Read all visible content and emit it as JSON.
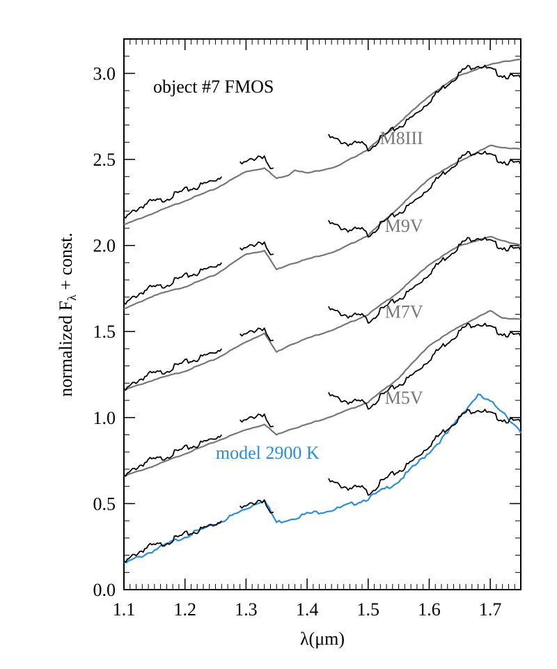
{
  "chart_data": {
    "type": "line",
    "title": "object #7 FMOS",
    "xlabel": "λ(μm)",
    "ylabel": "normalized Fλ + const.",
    "ylabel_parts": {
      "main": "normalized F",
      "sub": "λ",
      "tail": " + const."
    },
    "xlim": [
      1.1,
      1.75
    ],
    "ylim": [
      0.0,
      3.2
    ],
    "xticks": [
      1.1,
      1.2,
      1.3,
      1.4,
      1.5,
      1.6,
      1.7
    ],
    "xtick_labels": [
      "1.1",
      "1.2",
      "1.3",
      "1.4",
      "1.5",
      "1.6",
      "1.7"
    ],
    "yticks": [
      0.0,
      0.5,
      1.0,
      1.5,
      2.0,
      2.5,
      3.0
    ],
    "ytick_labels": [
      "0.0",
      "0.5",
      "1.0",
      "1.5",
      "2.0",
      "2.5",
      "3.0"
    ],
    "colors": {
      "observed": "#000000",
      "template": "#777777",
      "model": "#2a8de0"
    },
    "offsets": [
      0.0,
      0.5,
      1.0,
      1.5,
      2.0
    ],
    "segments": [
      {
        "x": [
          1.1,
          1.12,
          1.14,
          1.16,
          1.18,
          1.2,
          1.22,
          1.24,
          1.26
        ],
        "y": [
          0.15,
          0.21,
          0.25,
          0.26,
          0.29,
          0.32,
          0.34,
          0.37,
          0.4
        ]
      },
      {
        "x": [
          1.29,
          1.3,
          1.31,
          1.32,
          1.33,
          1.34,
          1.345
        ],
        "y": [
          0.47,
          0.48,
          0.5,
          0.52,
          0.52,
          0.43,
          0.45
        ]
      },
      {
        "x": [
          1.435,
          1.45,
          1.47,
          1.49,
          1.5,
          1.52,
          1.54,
          1.56,
          1.58,
          1.6,
          1.62,
          1.64,
          1.66,
          1.68,
          1.7,
          1.72,
          1.75
        ],
        "y": [
          0.63,
          0.61,
          0.59,
          0.59,
          0.56,
          0.62,
          0.67,
          0.71,
          0.77,
          0.84,
          0.91,
          0.97,
          1.03,
          1.05,
          1.02,
          0.99,
          0.97
        ]
      }
    ],
    "series": [
      {
        "name": "model 2900 K",
        "label": "model 2900 K",
        "offset": 0.0,
        "color": "#2a8de0",
        "x": [
          1.1,
          1.15,
          1.2,
          1.25,
          1.3,
          1.32,
          1.33,
          1.35,
          1.37,
          1.4,
          1.45,
          1.5,
          1.55,
          1.6,
          1.63,
          1.66,
          1.68,
          1.7,
          1.72,
          1.75
        ],
        "y": [
          0.15,
          0.23,
          0.31,
          0.38,
          0.47,
          0.51,
          0.52,
          0.39,
          0.41,
          0.44,
          0.47,
          0.53,
          0.63,
          0.8,
          0.91,
          1.05,
          1.13,
          1.09,
          1.04,
          0.91
        ]
      },
      {
        "name": "M5V",
        "label": "M5V",
        "offset": 0.5,
        "color": "#777777",
        "x": [
          1.1,
          1.15,
          1.2,
          1.25,
          1.3,
          1.33,
          1.35,
          1.37,
          1.4,
          1.45,
          1.5,
          1.55,
          1.6,
          1.65,
          1.7,
          1.72,
          1.75
        ],
        "y": [
          0.16,
          0.22,
          0.29,
          0.36,
          0.43,
          0.46,
          0.4,
          0.43,
          0.46,
          0.52,
          0.59,
          0.73,
          0.92,
          1.03,
          1.12,
          1.08,
          1.07
        ]
      },
      {
        "name": "M7V",
        "label": "M7V",
        "offset": 1.0,
        "color": "#777777",
        "x": [
          1.1,
          1.15,
          1.2,
          1.25,
          1.3,
          1.33,
          1.35,
          1.37,
          1.4,
          1.45,
          1.5,
          1.55,
          1.6,
          1.65,
          1.7,
          1.72,
          1.75
        ],
        "y": [
          0.16,
          0.22,
          0.27,
          0.34,
          0.44,
          0.49,
          0.38,
          0.42,
          0.46,
          0.52,
          0.6,
          0.73,
          0.89,
          1.0,
          1.05,
          1.03,
          1.0
        ]
      },
      {
        "name": "M9V",
        "label": "M9V",
        "offset": 1.5,
        "color": "#777777",
        "x": [
          1.1,
          1.15,
          1.2,
          1.25,
          1.3,
          1.33,
          1.35,
          1.37,
          1.4,
          1.45,
          1.5,
          1.55,
          1.6,
          1.65,
          1.7,
          1.72,
          1.75
        ],
        "y": [
          0.13,
          0.21,
          0.26,
          0.33,
          0.45,
          0.47,
          0.36,
          0.39,
          0.42,
          0.47,
          0.56,
          0.72,
          0.89,
          0.99,
          1.08,
          1.07,
          1.06
        ]
      },
      {
        "name": "M8III",
        "label": "M8III",
        "offset": 2.0,
        "color": "#777777",
        "x": [
          1.1,
          1.15,
          1.2,
          1.25,
          1.3,
          1.33,
          1.35,
          1.37,
          1.38,
          1.4,
          1.45,
          1.5,
          1.55,
          1.6,
          1.65,
          1.7,
          1.72,
          1.75
        ],
        "y": [
          0.12,
          0.19,
          0.26,
          0.33,
          0.43,
          0.45,
          0.39,
          0.41,
          0.44,
          0.42,
          0.46,
          0.56,
          0.71,
          0.87,
          0.99,
          1.05,
          1.07,
          1.08
        ]
      }
    ],
    "label_positions": {
      "M8III": [
        1.59,
        2.59
      ],
      "M9V": [
        1.59,
        2.08
      ],
      "M7V": [
        1.59,
        1.58
      ],
      "M5V": [
        1.59,
        1.08
      ],
      "model 2900 K": [
        1.42,
        0.76
      ]
    }
  }
}
